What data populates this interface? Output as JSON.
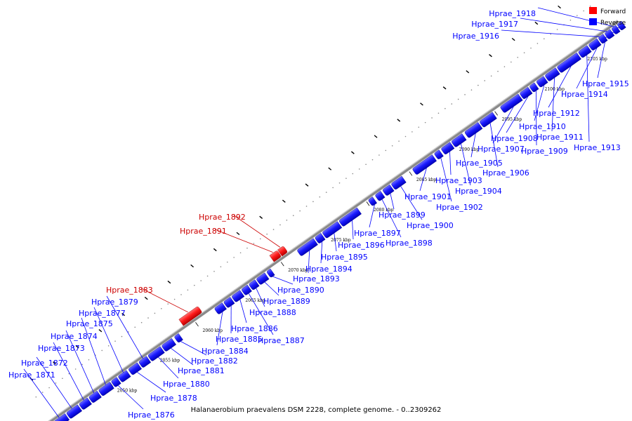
{
  "caption": "Halanaerobium praevalens DSM 2228, complete genome. - 0..2309262",
  "legend": {
    "items": [
      {
        "label": "Forward",
        "color": "#ff0000"
      },
      {
        "label": "Reverse",
        "color": "#0000ff"
      }
    ]
  },
  "scale": {
    "kbp_labels": [
      "2050 kbp",
      "2055 kbp",
      "2060 kbp",
      "2065 kbp",
      "2070 kbp",
      "2075 kbp",
      "2080 kbp",
      "2085 kbp",
      "2090 kbp",
      "2095 kbp",
      "2100 kbp",
      "2105 kbp"
    ]
  },
  "genes": [
    {
      "id": "Hprae_1871",
      "strand": "reverse"
    },
    {
      "id": "Hprae_1872",
      "strand": "reverse"
    },
    {
      "id": "Hprae_1873",
      "strand": "reverse"
    },
    {
      "id": "Hprae_1874",
      "strand": "reverse"
    },
    {
      "id": "Hprae_1875",
      "strand": "reverse"
    },
    {
      "id": "Hprae_1876",
      "strand": "reverse"
    },
    {
      "id": "Hprae_1877",
      "strand": "reverse"
    },
    {
      "id": "Hprae_1878",
      "strand": "reverse"
    },
    {
      "id": "Hprae_1879",
      "strand": "reverse"
    },
    {
      "id": "Hprae_1880",
      "strand": "reverse"
    },
    {
      "id": "Hprae_1881",
      "strand": "reverse"
    },
    {
      "id": "Hprae_1882",
      "strand": "reverse"
    },
    {
      "id": "Hprae_1883",
      "strand": "forward"
    },
    {
      "id": "Hprae_1884",
      "strand": "reverse"
    },
    {
      "id": "Hprae_1885",
      "strand": "reverse"
    },
    {
      "id": "Hprae_1886",
      "strand": "reverse"
    },
    {
      "id": "Hprae_1887",
      "strand": "reverse"
    },
    {
      "id": "Hprae_1888",
      "strand": "reverse"
    },
    {
      "id": "Hprae_1889",
      "strand": "reverse"
    },
    {
      "id": "Hprae_1890",
      "strand": "reverse"
    },
    {
      "id": "Hprae_1891",
      "strand": "forward"
    },
    {
      "id": "Hprae_1892",
      "strand": "forward"
    },
    {
      "id": "Hprae_1893",
      "strand": "reverse"
    },
    {
      "id": "Hprae_1894",
      "strand": "reverse"
    },
    {
      "id": "Hprae_1895",
      "strand": "reverse"
    },
    {
      "id": "Hprae_1896",
      "strand": "reverse"
    },
    {
      "id": "Hprae_1897",
      "strand": "reverse"
    },
    {
      "id": "Hprae_1898",
      "strand": "reverse"
    },
    {
      "id": "Hprae_1899",
      "strand": "reverse"
    },
    {
      "id": "Hprae_1900",
      "strand": "reverse"
    },
    {
      "id": "Hprae_1901",
      "strand": "reverse"
    },
    {
      "id": "Hprae_1902",
      "strand": "reverse"
    },
    {
      "id": "Hprae_1903",
      "strand": "reverse"
    },
    {
      "id": "Hprae_1904",
      "strand": "reverse"
    },
    {
      "id": "Hprae_1905",
      "strand": "reverse"
    },
    {
      "id": "Hprae_1906",
      "strand": "reverse"
    },
    {
      "id": "Hprae_1907",
      "strand": "reverse"
    },
    {
      "id": "Hprae_1908",
      "strand": "reverse"
    },
    {
      "id": "Hprae_1909",
      "strand": "reverse"
    },
    {
      "id": "Hprae_1910",
      "strand": "reverse"
    },
    {
      "id": "Hprae_1911",
      "strand": "reverse"
    },
    {
      "id": "Hprae_1912",
      "strand": "reverse"
    },
    {
      "id": "Hprae_1913",
      "strand": "reverse"
    },
    {
      "id": "Hprae_1914",
      "strand": "reverse"
    },
    {
      "id": "Hprae_1915",
      "strand": "reverse"
    },
    {
      "id": "Hprae_1916",
      "strand": "reverse"
    },
    {
      "id": "Hprae_1917",
      "strand": "reverse"
    },
    {
      "id": "Hprae_1918",
      "strand": "reverse"
    }
  ]
}
